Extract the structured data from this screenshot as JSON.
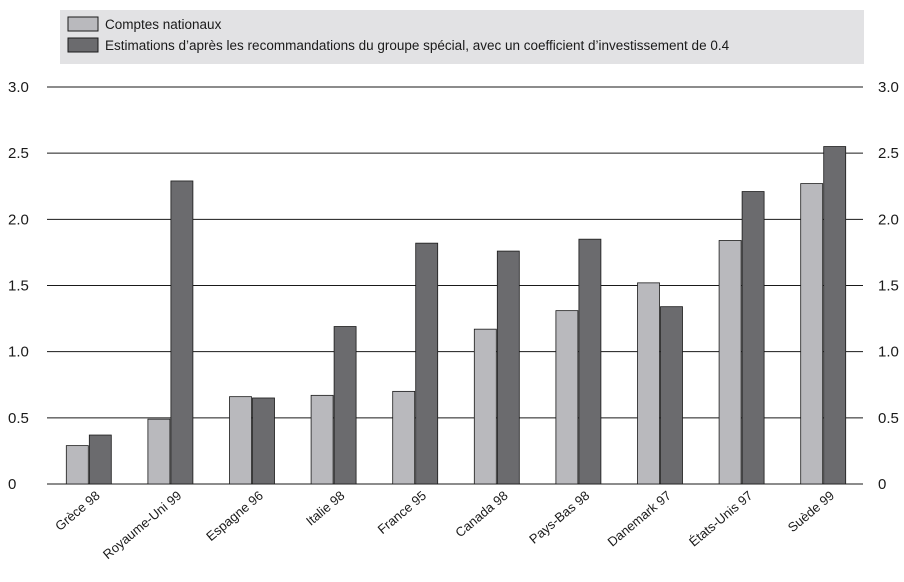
{
  "chart_data": {
    "type": "bar",
    "categories": [
      "Grèce 98",
      "Royaume-Uni 99",
      "Espagne 96",
      "Italie 98",
      "France 95",
      "Canada 98",
      "Pays-Bas 98",
      "Danemark 97",
      "États-Unis 97",
      "Suède 99"
    ],
    "series": [
      {
        "name": "Comptes nationaux",
        "values": [
          0.29,
          0.49,
          0.66,
          0.67,
          0.7,
          1.17,
          1.31,
          1.52,
          1.84,
          2.27
        ],
        "color": "#b9b9bd"
      },
      {
        "name": "Estimations d’après les recommandations du groupe spécial, avec un coefficient d’investissement de 0.4",
        "values": [
          0.37,
          2.29,
          0.65,
          1.19,
          1.82,
          1.76,
          1.85,
          1.34,
          2.21,
          2.55
        ],
        "color": "#6b6b6e"
      }
    ],
    "ylim": [
      0,
      3.0
    ],
    "yticks": [
      "0",
      "0.5",
      "1.0",
      "1.5",
      "2.0",
      "2.5",
      "3.0"
    ],
    "ytick_values": [
      0,
      0.5,
      1.0,
      1.5,
      2.0,
      2.5,
      3.0
    ],
    "grid": true,
    "legend_position": "top",
    "legend_background": "#e2e2e4"
  }
}
